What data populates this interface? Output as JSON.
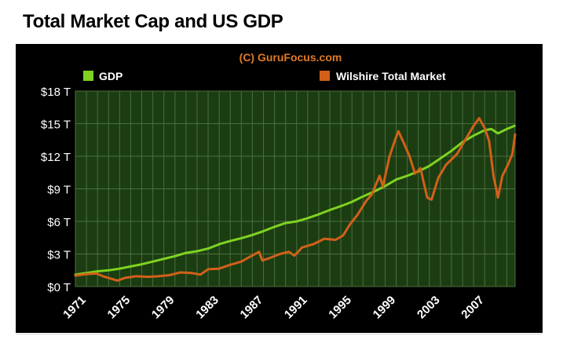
{
  "page": {
    "title": "Total Market Cap and US GDP"
  },
  "watermark": "(C) GuruFocus.com",
  "colors": {
    "panel_bg": "#000000",
    "plot_bg": "#1c3d12",
    "grid": "#4a6e3e",
    "text": "#ffffff",
    "watermark": "#e07a26",
    "gdp": "#7ed321",
    "wilshire": "#d2601a"
  },
  "chart_data": {
    "type": "line",
    "title": "Total Market Cap and US GDP",
    "xlabel": "",
    "ylabel": "",
    "xlim": [
      1971,
      2010.75
    ],
    "ylim": [
      0,
      18
    ],
    "y_ticks": [
      0,
      3,
      6,
      9,
      12,
      15,
      18
    ],
    "y_tick_labels": [
      "$0 T",
      "$3 T",
      "$6 T",
      "$9 T",
      "$12 T",
      "$15 T",
      "$18 T"
    ],
    "x_ticks": [
      1971,
      1975,
      1979,
      1983,
      1987,
      1991,
      1995,
      1999,
      2003,
      2007
    ],
    "x_tick_labels": [
      "1971",
      "1975",
      "1979",
      "1983",
      "1987",
      "1991",
      "1995",
      "1999",
      "2003",
      "2007"
    ],
    "grid": true,
    "legend": "top-left",
    "series": [
      {
        "name": "GDP",
        "color": "#7ed321",
        "points": [
          [
            1971,
            1.1
          ],
          [
            1972,
            1.25
          ],
          [
            1973,
            1.4
          ],
          [
            1974,
            1.5
          ],
          [
            1975,
            1.65
          ],
          [
            1976,
            1.85
          ],
          [
            1977,
            2.05
          ],
          [
            1978,
            2.3
          ],
          [
            1979,
            2.55
          ],
          [
            1980,
            2.8
          ],
          [
            1981,
            3.1
          ],
          [
            1982,
            3.25
          ],
          [
            1983,
            3.5
          ],
          [
            1984,
            3.9
          ],
          [
            1985,
            4.2
          ],
          [
            1986,
            4.45
          ],
          [
            1987,
            4.75
          ],
          [
            1988,
            5.1
          ],
          [
            1989,
            5.5
          ],
          [
            1990,
            5.85
          ],
          [
            1991,
            6.0
          ],
          [
            1992,
            6.3
          ],
          [
            1993,
            6.65
          ],
          [
            1994,
            7.05
          ],
          [
            1995,
            7.4
          ],
          [
            1996,
            7.8
          ],
          [
            1997,
            8.3
          ],
          [
            1998,
            8.75
          ],
          [
            1999,
            9.25
          ],
          [
            2000,
            9.85
          ],
          [
            2001,
            10.2
          ],
          [
            2002,
            10.6
          ],
          [
            2003,
            11.1
          ],
          [
            2004,
            11.8
          ],
          [
            2005,
            12.5
          ],
          [
            2006,
            13.3
          ],
          [
            2007,
            13.9
          ],
          [
            2008,
            14.4
          ],
          [
            2008.6,
            14.5
          ],
          [
            2009.2,
            14.1
          ],
          [
            2010,
            14.5
          ],
          [
            2010.7,
            14.8
          ]
        ]
      },
      {
        "name": "Wilshire Total Market",
        "color": "#d2601a",
        "points": [
          [
            1971,
            1.0
          ],
          [
            1972,
            1.15
          ],
          [
            1972.9,
            1.2
          ],
          [
            1973.5,
            0.95
          ],
          [
            1974.3,
            0.7
          ],
          [
            1974.8,
            0.55
          ],
          [
            1975.5,
            0.8
          ],
          [
            1976.5,
            0.95
          ],
          [
            1977.5,
            0.9
          ],
          [
            1978.5,
            0.95
          ],
          [
            1979.5,
            1.05
          ],
          [
            1980.5,
            1.3
          ],
          [
            1981.5,
            1.25
          ],
          [
            1982.3,
            1.1
          ],
          [
            1983,
            1.6
          ],
          [
            1984,
            1.65
          ],
          [
            1985,
            2.0
          ],
          [
            1986,
            2.3
          ],
          [
            1987.6,
            3.2
          ],
          [
            1987.9,
            2.4
          ],
          [
            1988.5,
            2.6
          ],
          [
            1989.5,
            3.0
          ],
          [
            1990.3,
            3.2
          ],
          [
            1990.8,
            2.85
          ],
          [
            1991.5,
            3.6
          ],
          [
            1992.5,
            3.9
          ],
          [
            1993.5,
            4.4
          ],
          [
            1994.5,
            4.3
          ],
          [
            1995.2,
            4.7
          ],
          [
            1995.8,
            5.7
          ],
          [
            1996.5,
            6.6
          ],
          [
            1997.3,
            7.9
          ],
          [
            1997.8,
            8.5
          ],
          [
            1998.5,
            10.2
          ],
          [
            1998.8,
            9.2
          ],
          [
            1999.4,
            12.0
          ],
          [
            1999.9,
            13.5
          ],
          [
            2000.2,
            14.3
          ],
          [
            2000.7,
            13.2
          ],
          [
            2001.2,
            12.0
          ],
          [
            2001.7,
            10.4
          ],
          [
            2002.2,
            10.9
          ],
          [
            2002.8,
            8.2
          ],
          [
            2003.2,
            8.0
          ],
          [
            2003.8,
            10.0
          ],
          [
            2004.5,
            11.2
          ],
          [
            2005.5,
            12.2
          ],
          [
            2006.3,
            13.6
          ],
          [
            2007,
            14.8
          ],
          [
            2007.5,
            15.5
          ],
          [
            2008,
            14.6
          ],
          [
            2008.4,
            13.4
          ],
          [
            2008.8,
            10.2
          ],
          [
            2009.2,
            8.2
          ],
          [
            2009.6,
            10.2
          ],
          [
            2010.1,
            11.2
          ],
          [
            2010.5,
            12.2
          ],
          [
            2010.75,
            14.0
          ]
        ]
      }
    ]
  }
}
